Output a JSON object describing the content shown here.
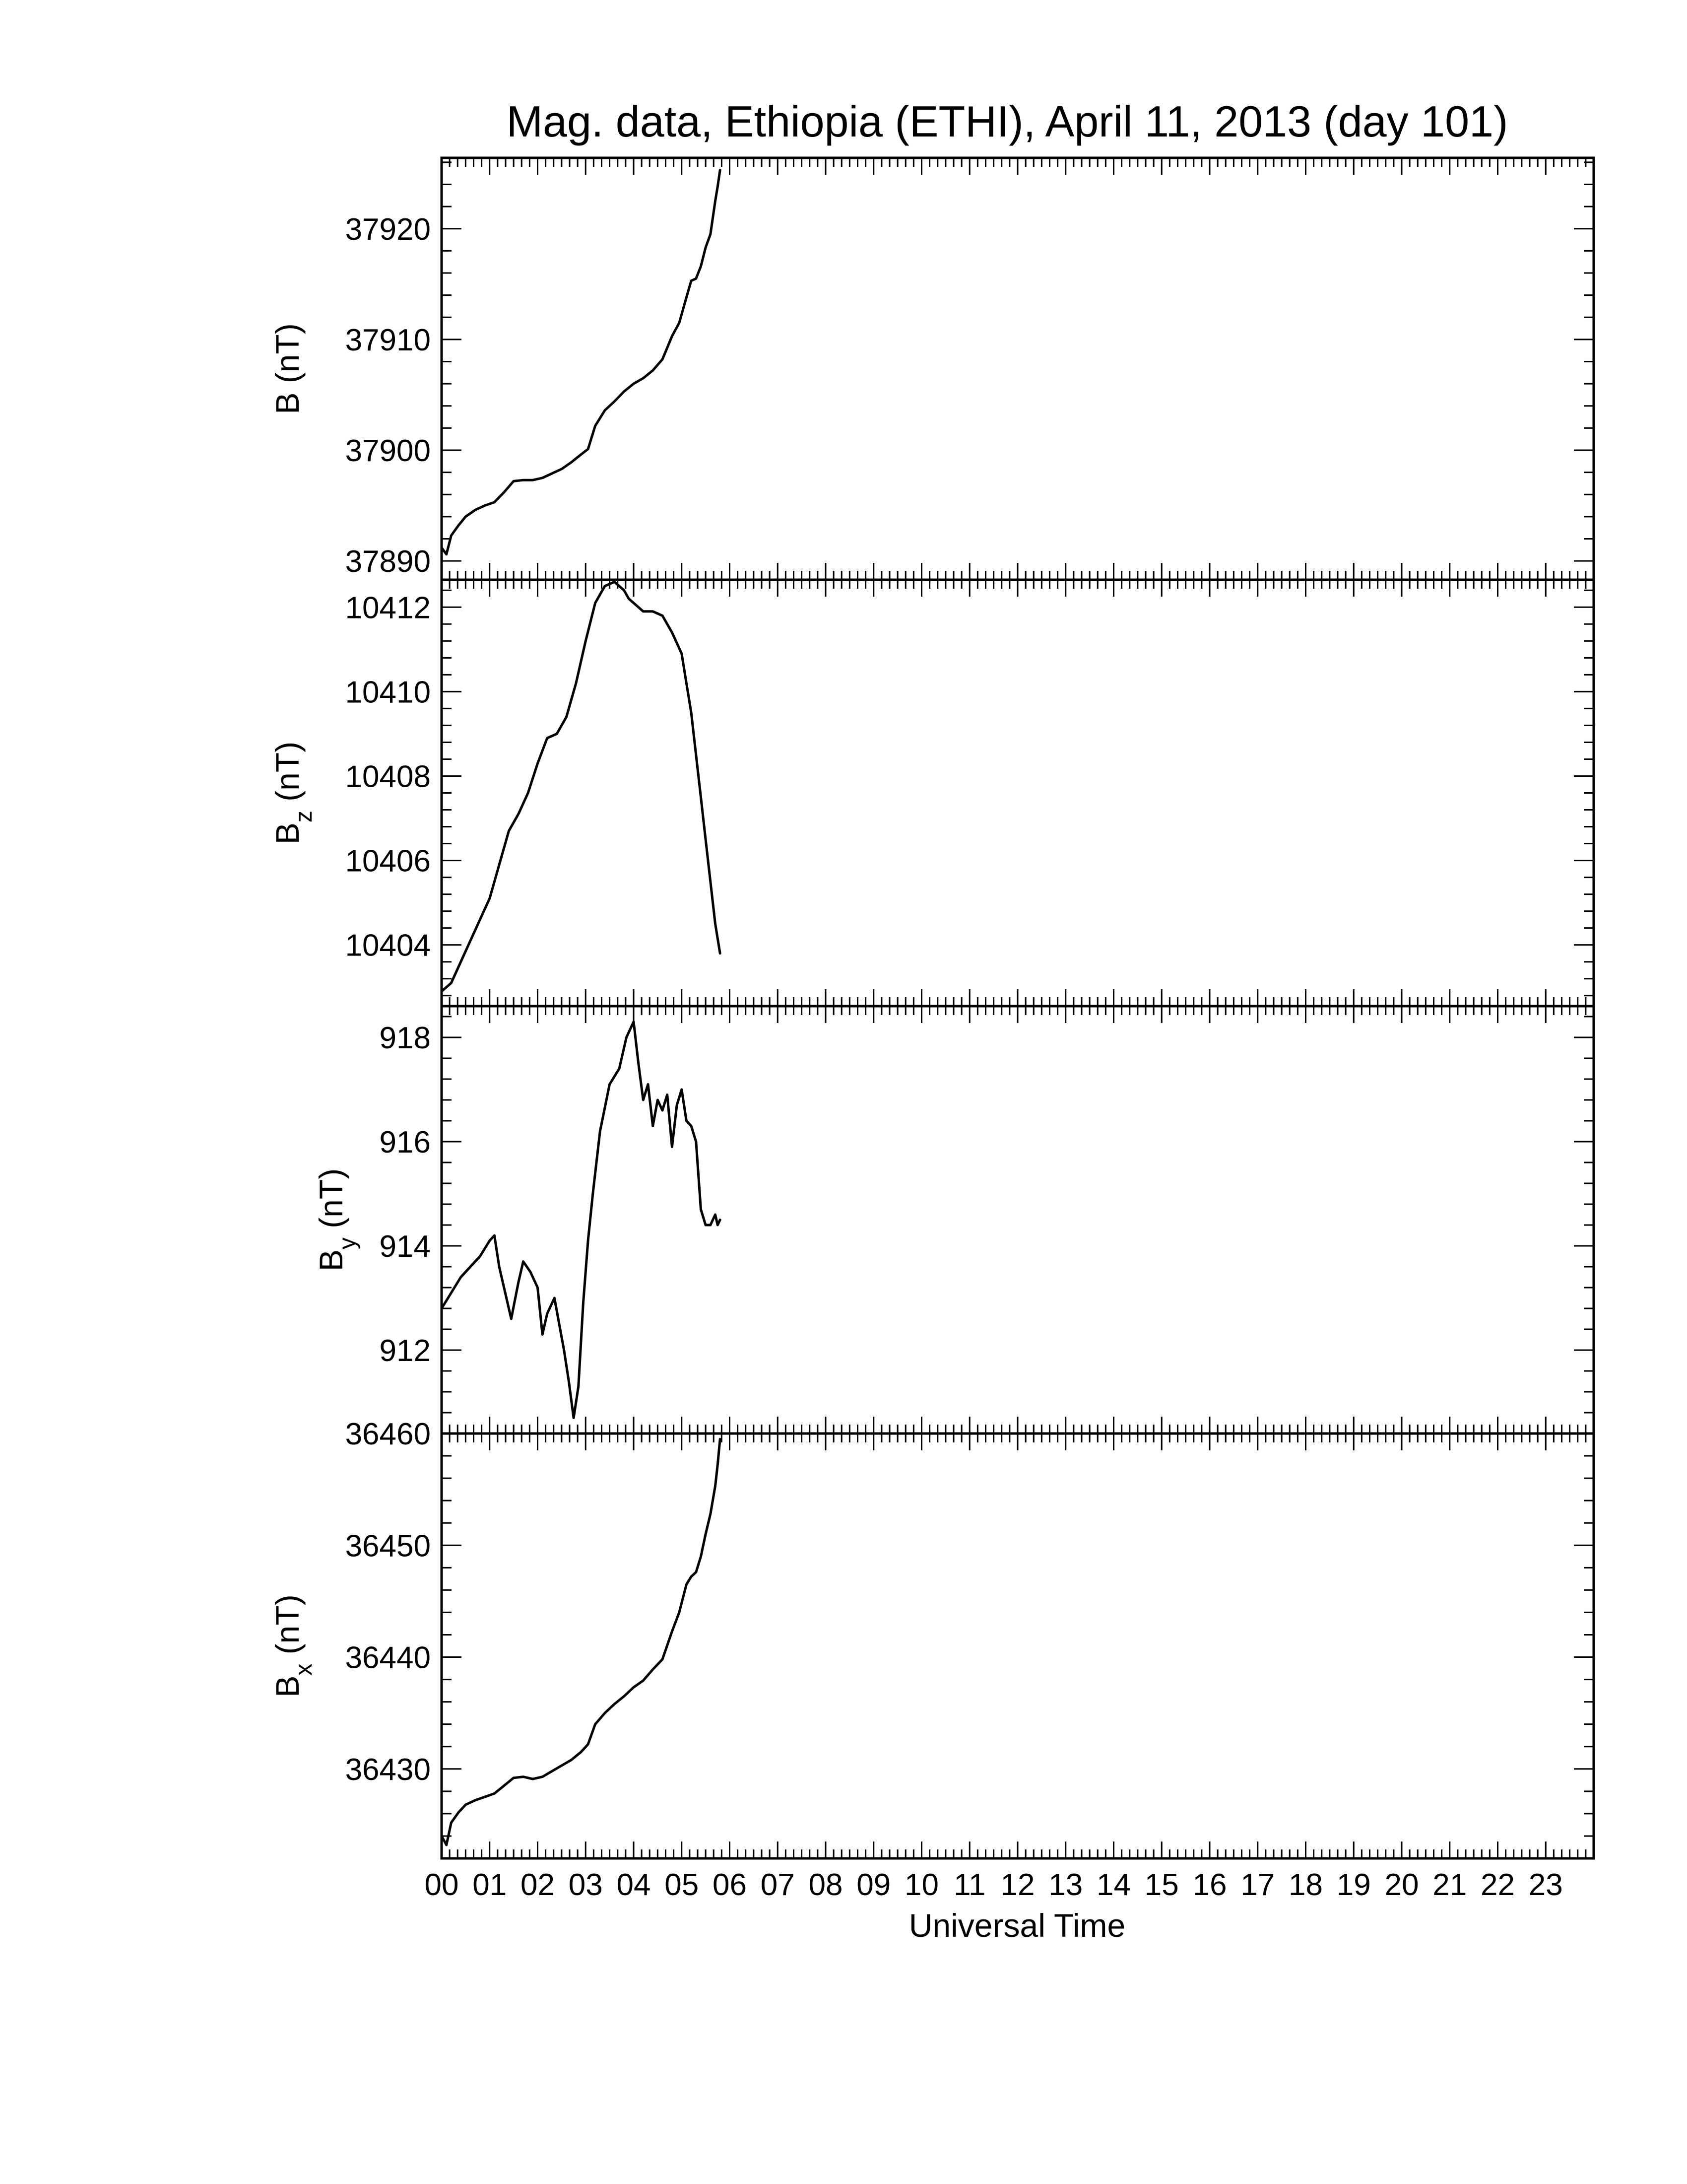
{
  "title": "Mag. data, Ethiopia (ETHI), April 11, 2013 (day 101)",
  "chart_data": {
    "type": "line",
    "title": "Mag. data, Ethiopia (ETHI), April 11, 2013 (day 101)",
    "xlabel": "Universal Time",
    "xlim": [
      0,
      24
    ],
    "x_tick_labels": [
      "00",
      "01",
      "02",
      "03",
      "04",
      "05",
      "06",
      "07",
      "08",
      "09",
      "10",
      "11",
      "12",
      "13",
      "14",
      "15",
      "16",
      "17",
      "18",
      "19",
      "20",
      "21",
      "22",
      "23"
    ],
    "grid": false,
    "line_color": "#000000",
    "panels": [
      {
        "id": "b",
        "ylabel": "B (nT)",
        "ylabel_main": "B",
        "ylabel_sub": "",
        "ylabel_unit": " (nT)",
        "ylim": [
          37888.3,
          37926.4
        ],
        "y_ticks": [
          37890,
          37900,
          37910,
          37920
        ],
        "y_tick_labels": [
          "37890",
          "37900",
          "37910",
          "37920"
        ],
        "series": [
          {
            "x": [
              0.0,
              0.1,
              0.2,
              0.35,
              0.5,
              0.7,
              0.9,
              1.1,
              1.3,
              1.5,
              1.7,
              1.9,
              2.1,
              2.3,
              2.5,
              2.7,
              2.9,
              3.05,
              3.2,
              3.4,
              3.6,
              3.8,
              4.0,
              4.2,
              4.4,
              4.6,
              4.8,
              4.95,
              5.1,
              5.2,
              5.3,
              5.4,
              5.5,
              5.6,
              5.7,
              5.75,
              5.8
            ],
            "y": [
              37891.2,
              37890.6,
              37892.3,
              37893.2,
              37894.0,
              37894.6,
              37895.0,
              37895.3,
              37896.2,
              37897.2,
              37897.3,
              37897.3,
              37897.5,
              37897.9,
              37898.3,
              37898.9,
              37899.6,
              37900.1,
              37902.2,
              37903.6,
              37904.4,
              37905.3,
              37906.0,
              37906.5,
              37907.2,
              37908.2,
              37910.3,
              37911.5,
              37913.8,
              37915.3,
              37915.5,
              37916.6,
              37918.3,
              37919.5,
              37922.5,
              37923.8,
              37925.3
            ]
          }
        ]
      },
      {
        "id": "bz",
        "ylabel": "Bz (nT)",
        "ylabel_main": "B",
        "ylabel_sub": "z",
        "ylabel_unit": " (nT)",
        "ylim": [
          10402.55,
          10412.65
        ],
        "y_ticks": [
          10404,
          10406,
          10408,
          10410,
          10412
        ],
        "y_tick_labels": [
          "10404",
          "10406",
          "10408",
          "10410",
          "10412"
        ],
        "series": [
          {
            "x": [
              0.0,
              0.2,
              0.4,
              0.6,
              0.8,
              1.0,
              1.2,
              1.4,
              1.6,
              1.8,
              2.0,
              2.2,
              2.4,
              2.6,
              2.8,
              3.0,
              3.2,
              3.4,
              3.6,
              3.8,
              3.9,
              4.0,
              4.2,
              4.4,
              4.6,
              4.8,
              5.0,
              5.1,
              5.2,
              5.3,
              5.4,
              5.5,
              5.6,
              5.7,
              5.8
            ],
            "y": [
              10402.9,
              10403.1,
              10403.6,
              10404.1,
              10404.6,
              10405.1,
              10405.9,
              10406.7,
              10407.1,
              10407.6,
              10408.3,
              10408.9,
              10409.0,
              10409.4,
              10410.2,
              10411.2,
              10412.1,
              10412.5,
              10412.6,
              10412.4,
              10412.2,
              10412.1,
              10411.9,
              10411.9,
              10411.8,
              10411.4,
              10410.9,
              10410.2,
              10409.5,
              10408.5,
              10407.5,
              10406.5,
              10405.5,
              10404.5,
              10403.8
            ]
          }
        ]
      },
      {
        "id": "by",
        "ylabel": "By (nT)",
        "ylabel_main": "B",
        "ylabel_sub": "y",
        "ylabel_unit": " (nT)",
        "ylim": [
          910.4,
          918.6
        ],
        "y_ticks": [
          912,
          914,
          916,
          918
        ],
        "y_tick_labels": [
          "912",
          "914",
          "916",
          "918"
        ],
        "series": [
          {
            "x": [
              0.0,
              0.2,
              0.4,
              0.6,
              0.8,
              1.0,
              1.1,
              1.2,
              1.3,
              1.45,
              1.6,
              1.7,
              1.85,
              2.0,
              2.1,
              2.2,
              2.35,
              2.45,
              2.55,
              2.65,
              2.75,
              2.85,
              2.95,
              3.05,
              3.15,
              3.3,
              3.5,
              3.7,
              3.85,
              4.0,
              4.1,
              4.2,
              4.3,
              4.4,
              4.5,
              4.6,
              4.7,
              4.8,
              4.9,
              5.0,
              5.1,
              5.2,
              5.3,
              5.4,
              5.5,
              5.6,
              5.7,
              5.75,
              5.8
            ],
            "y": [
              912.8,
              913.1,
              913.4,
              913.6,
              913.8,
              914.1,
              914.2,
              913.6,
              913.2,
              912.6,
              913.3,
              913.7,
              913.5,
              913.2,
              912.3,
              912.7,
              913.0,
              912.5,
              912.0,
              911.4,
              910.7,
              911.3,
              912.9,
              914.1,
              915.0,
              916.2,
              917.1,
              917.4,
              918.0,
              918.3,
              917.5,
              916.8,
              917.1,
              916.3,
              916.8,
              916.6,
              916.9,
              915.9,
              916.7,
              917.0,
              916.4,
              916.3,
              916.0,
              914.7,
              914.4,
              914.4,
              914.6,
              914.4,
              914.5
            ]
          }
        ]
      },
      {
        "id": "bx",
        "ylabel": "Bx (nT)",
        "ylabel_main": "B",
        "ylabel_sub": "x",
        "ylabel_unit": " (nT)",
        "ylim": [
          36422.0,
          36460.0
        ],
        "y_ticks": [
          36430,
          36440,
          36450,
          36460
        ],
        "y_tick_labels": [
          "36430",
          "36440",
          "36450",
          "36460"
        ],
        "series": [
          {
            "x": [
              0.0,
              0.1,
              0.2,
              0.35,
              0.5,
              0.7,
              0.9,
              1.1,
              1.3,
              1.5,
              1.7,
              1.9,
              2.1,
              2.3,
              2.5,
              2.7,
              2.9,
              3.05,
              3.2,
              3.4,
              3.6,
              3.8,
              4.0,
              4.2,
              4.4,
              4.6,
              4.8,
              4.95,
              5.1,
              5.2,
              5.3,
              5.4,
              5.5,
              5.6,
              5.7,
              5.75,
              5.8
            ],
            "y": [
              36424.0,
              36423.2,
              36425.2,
              36426.1,
              36426.8,
              36427.2,
              36427.5,
              36427.8,
              36428.5,
              36429.2,
              36429.3,
              36429.1,
              36429.3,
              36429.8,
              36430.3,
              36430.8,
              36431.5,
              36432.2,
              36434.0,
              36435.0,
              36435.8,
              36436.5,
              36437.3,
              36437.9,
              36438.9,
              36439.8,
              36442.3,
              36444.0,
              36446.5,
              36447.2,
              36447.6,
              36449.0,
              36451.0,
              36452.8,
              36455.3,
              36457.2,
              36459.5
            ]
          }
        ]
      }
    ]
  }
}
